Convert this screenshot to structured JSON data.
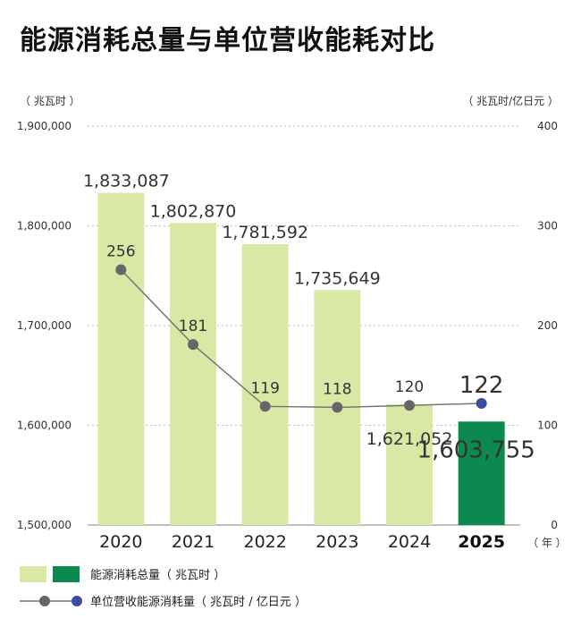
{
  "title": "能源消耗总量与单位营收能耗对比",
  "chart_data": {
    "type": "bar+line",
    "categories": [
      "2020",
      "2021",
      "2022",
      "2023",
      "2024",
      "2025"
    ],
    "highlight_category": "2025",
    "left_axis": {
      "unit": "（ 兆瓦时 ）",
      "ylim": [
        1500000,
        1900000
      ],
      "ticks": [
        1500000,
        1600000,
        1700000,
        1800000,
        1900000
      ],
      "tick_labels": [
        "1,500,000",
        "1,600,000",
        "1,700,000",
        "1,800,000",
        "1,900,000"
      ]
    },
    "right_axis": {
      "unit": "（ 兆瓦时/亿日元 ）",
      "ylim": [
        0,
        400
      ],
      "ticks": [
        0,
        100,
        200,
        300,
        400
      ],
      "tick_labels": [
        "0",
        "100",
        "200",
        "300",
        "400"
      ]
    },
    "x_unit": "（ 年 ）",
    "grid": true,
    "series": [
      {
        "name": "能源消耗总量（ 兆瓦时 ）",
        "kind": "bar",
        "axis": "left",
        "values": [
          1833087,
          1802870,
          1781592,
          1735649,
          1621052,
          1603755
        ],
        "labels": [
          "1,833,087",
          "1,802,870",
          "1,781,592",
          "1,735,649",
          "1,621,052",
          "1,603,755"
        ],
        "color": "#d9e8a4",
        "highlight_color": "#0c8a4d"
      },
      {
        "name": "单位营收能源消耗量（ 兆瓦时 / 亿日元 ）",
        "kind": "line",
        "axis": "right",
        "values": [
          256,
          181,
          119,
          118,
          120,
          122
        ],
        "labels": [
          "256",
          "181",
          "119",
          "118",
          "120",
          "122"
        ],
        "color": "#777777",
        "highlight_color": "#3d4c9e"
      }
    ],
    "legend_placement": "bottom-left"
  }
}
